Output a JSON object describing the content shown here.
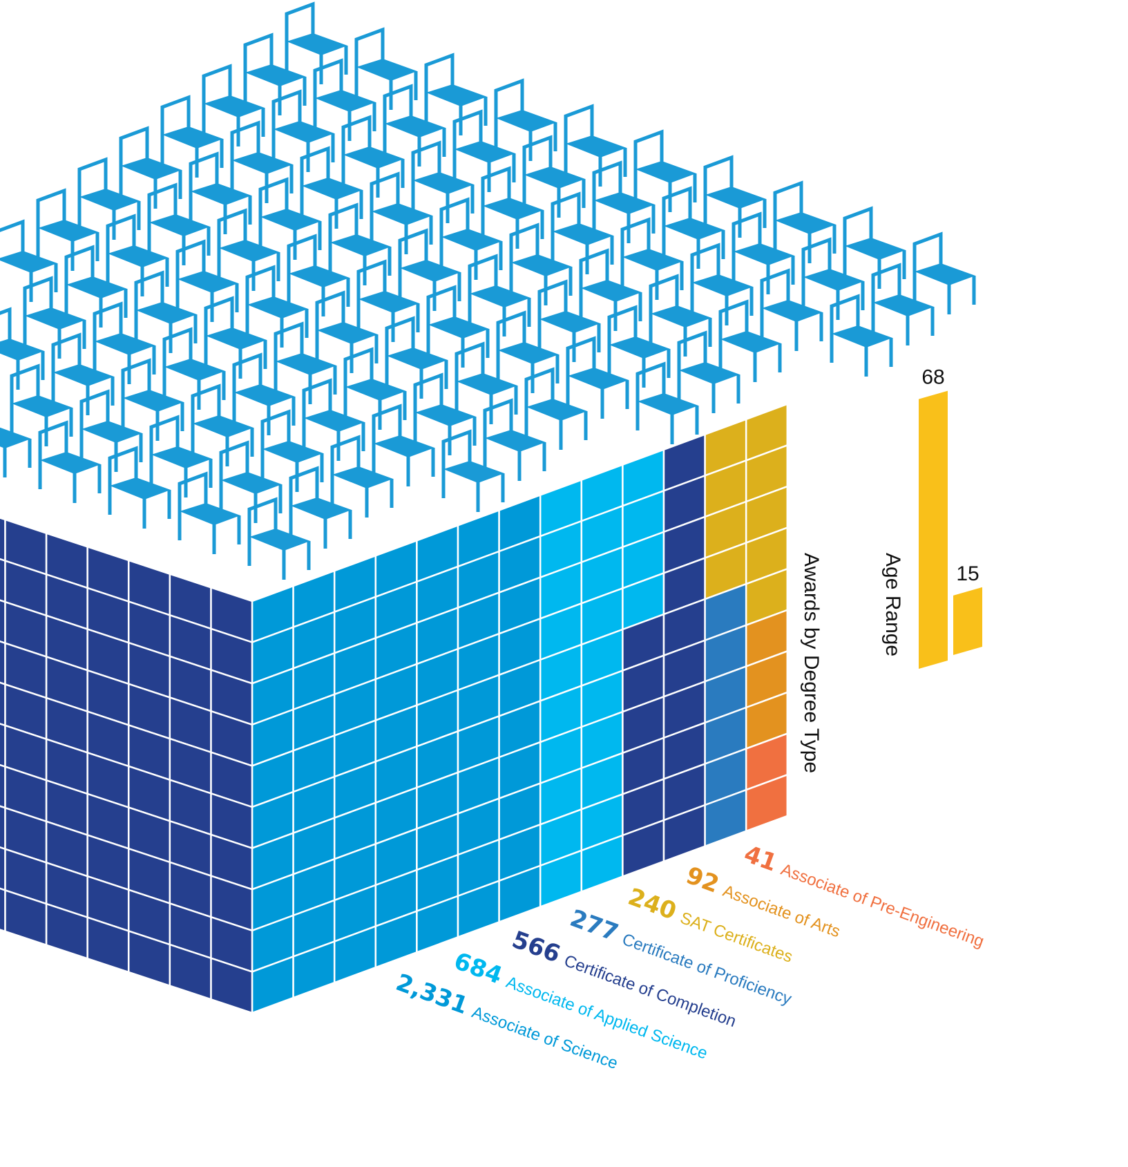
{
  "chart_data": [
    {
      "type": "waffle",
      "title": "Awards by Degree Type",
      "categories": [
        "Associate of Science",
        "Associate of Applied Science",
        "Certificate of Completion",
        "Certificate of Proficiency",
        "SAT Certificates",
        "Associate of Arts",
        "Associate of Pre-Engineering"
      ],
      "values": [
        2331,
        684,
        566,
        277,
        240,
        92,
        41
      ],
      "value_labels": [
        "2,331",
        "684",
        "566",
        "277",
        "240",
        "92",
        "41"
      ],
      "colors": [
        "#0099d8",
        "#00b8ef",
        "#253f8e",
        "#2a7bbf",
        "#dcb01c",
        "#e3921f",
        "#f07040"
      ]
    },
    {
      "type": "bar",
      "title": "Age Range",
      "values": [
        68,
        15
      ],
      "color": "#f9c01a"
    }
  ]
}
